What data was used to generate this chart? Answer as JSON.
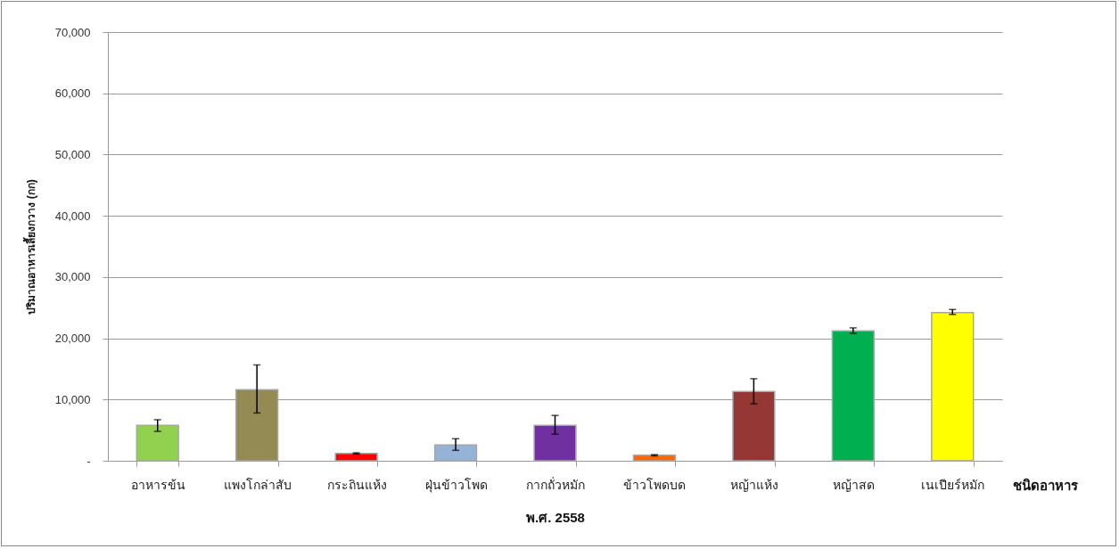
{
  "chart_data": {
    "type": "bar",
    "categories": [
      "อาหารข้น",
      "แพงโกล่าสับ",
      "กระถินแห้ง",
      "ฝุ่นข้าวโพด",
      "กากถั่วหมัก",
      "ข้าวโพดบด",
      "หญ้าแห้ง",
      "หญ้าสด",
      "เนเปียร์หมัก"
    ],
    "values": [
      5800,
      11600,
      1200,
      2600,
      5800,
      900,
      11300,
      21200,
      24200
    ],
    "errors": [
      [
        4800,
        6700
      ],
      [
        7800,
        15650
      ],
      [
        1100,
        1300
      ],
      [
        1700,
        3600
      ],
      [
        4350,
        7400
      ],
      [
        800,
        1000
      ],
      [
        9300,
        13400
      ],
      [
        20800,
        21700
      ],
      [
        23900,
        24700
      ]
    ],
    "colors": [
      "#92d050",
      "#948a54",
      "#ff0000",
      "#95b3d7",
      "#7030a0",
      "#ff6600",
      "#953735",
      "#00b050",
      "#ffff00"
    ],
    "ylabel": "ปริมาณอาหารเลี้ยงกวาง  (กก)",
    "xlabel": "พ.ศ. 2558",
    "annotations": [
      "ชนิดอาหาร"
    ],
    "ylim": [
      0,
      70000
    ],
    "yticks": [
      {
        "value": 0,
        "label": "-"
      },
      {
        "value": 10000,
        "label": "10,000"
      },
      {
        "value": 20000,
        "label": "20,000"
      },
      {
        "value": 30000,
        "label": "30,000"
      },
      {
        "value": 40000,
        "label": "40,000"
      },
      {
        "value": 50000,
        "label": "50,000"
      },
      {
        "value": 60000,
        "label": "60,000"
      },
      {
        "value": 70000,
        "label": "70,000"
      }
    ],
    "grid": "y",
    "legend": false
  }
}
